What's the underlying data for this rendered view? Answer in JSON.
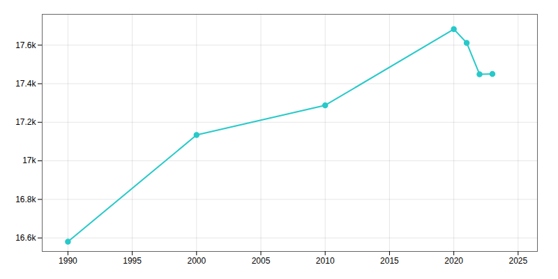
{
  "chart_data": {
    "type": "line",
    "x": [
      1990,
      2000,
      2010,
      2020,
      2021,
      2022,
      2023
    ],
    "values": [
      16581,
      17134,
      17288,
      17683,
      17612,
      17449,
      17451
    ],
    "color": "#27C9C9",
    "marker": "circle",
    "xlim": [
      1988,
      2026.5
    ],
    "ylim": [
      16530,
      17760
    ],
    "xticks": [
      1990,
      1995,
      2000,
      2005,
      2010,
      2015,
      2020,
      2025
    ],
    "yticks": [
      {
        "value": 16600,
        "label": "16.6k"
      },
      {
        "value": 16800,
        "label": "16.8k"
      },
      {
        "value": 17000,
        "label": "17k"
      },
      {
        "value": 17200,
        "label": "17.2k"
      },
      {
        "value": 17400,
        "label": "17.4k"
      },
      {
        "value": 17600,
        "label": "17.6k"
      }
    ],
    "grid": true
  }
}
